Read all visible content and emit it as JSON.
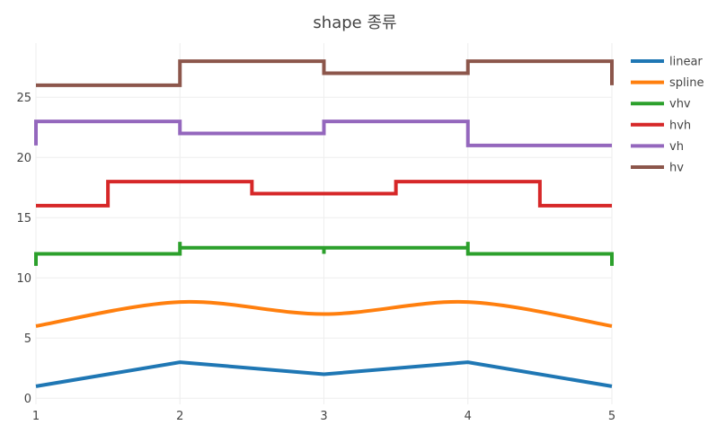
{
  "chart_data": {
    "type": "line",
    "title": "shape 종류",
    "xlabel": "",
    "ylabel": "",
    "x": [
      1,
      2,
      3,
      4,
      5
    ],
    "xlim": [
      1,
      5
    ],
    "ylim": [
      -0.5,
      29.5
    ],
    "x_ticks": [
      1,
      2,
      3,
      4,
      5
    ],
    "y_ticks": [
      0,
      5,
      10,
      15,
      20,
      25
    ],
    "grid": true,
    "legend_position": "right",
    "series": [
      {
        "name": "linear",
        "shape": "linear",
        "color": "#1f77b4",
        "values": [
          1,
          3,
          2,
          3,
          1
        ]
      },
      {
        "name": "spline",
        "shape": "spline",
        "color": "#ff7f0e",
        "values": [
          6,
          8,
          7,
          8,
          6
        ]
      },
      {
        "name": "vhv",
        "shape": "vhv",
        "color": "#2ca02c",
        "values": [
          11,
          13,
          12,
          13,
          11
        ]
      },
      {
        "name": "hvh",
        "shape": "hvh",
        "color": "#d62728",
        "values": [
          16,
          18,
          17,
          18,
          16
        ]
      },
      {
        "name": "vh",
        "shape": "vh",
        "color": "#9467bd",
        "values": [
          21,
          23,
          22,
          23,
          21
        ]
      },
      {
        "name": "hv",
        "shape": "hv",
        "color": "#8c564b",
        "values": [
          26,
          28,
          27,
          28,
          26
        ]
      }
    ]
  }
}
